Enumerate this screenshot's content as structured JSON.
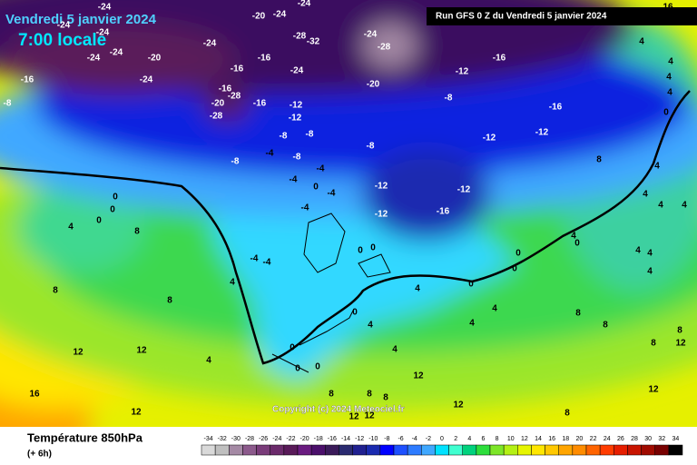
{
  "header": {
    "date": "Vendredi 5 janvier 2024",
    "time": "7:00 locale",
    "run": "Run GFS 0 Z du Vendredi 5 janvier 2024"
  },
  "copyright": "Copyright (c) 2024 Meteociel.fr",
  "footer": {
    "title": "Température 850hPa",
    "subtitle": "(+ 6h)"
  },
  "legend": {
    "scale": [
      -34,
      -32,
      -30,
      -28,
      -26,
      -24,
      -22,
      -20,
      -18,
      -16,
      -14,
      -12,
      -10,
      -8,
      -6,
      -4,
      -2,
      0,
      2,
      4,
      6,
      8,
      10,
      12,
      14,
      16,
      18,
      20,
      22,
      24,
      26,
      28,
      30,
      32,
      34
    ],
    "colors": [
      "#d9d9d9",
      "#bfbfbf",
      "#a58aa5",
      "#8c5a8c",
      "#7a3c7a",
      "#6b2a6b",
      "#591a59",
      "#6a1b80",
      "#4b0f6b",
      "#3a1a5a",
      "#2a2a70",
      "#202090",
      "#1a2ab0",
      "#0000ff",
      "#1e50ff",
      "#2d7bff",
      "#40a8ff",
      "#00e1ff",
      "#40ffd0",
      "#00d27d",
      "#2dde3c",
      "#7de628",
      "#b4f014",
      "#e6f500",
      "#ffe600",
      "#ffc800",
      "#ffa500",
      "#ff8c00",
      "#ff6400",
      "#ff3c00",
      "#e61e00",
      "#c81400",
      "#a00a00",
      "#780000",
      "#000000"
    ]
  },
  "map_labels": [
    -24,
    -20,
    -24,
    -24,
    -28,
    -32,
    -24,
    -28,
    -24,
    -24,
    -24,
    -24,
    -20,
    -24,
    -16,
    -16,
    -24,
    -20,
    -12,
    -16,
    -16,
    -24,
    -16,
    -28,
    -20,
    -28,
    -16,
    -12,
    -12,
    -8,
    -16,
    -12,
    -12,
    -8,
    -8,
    -8,
    -8,
    -4,
    -8,
    -8,
    -4,
    -4,
    0,
    -12,
    -12,
    -4,
    -4,
    -12,
    -16,
    0,
    0,
    0,
    4,
    8,
    -4,
    -4,
    0,
    0,
    0,
    0,
    0,
    4,
    0,
    4,
    4,
    4,
    8,
    8,
    4,
    0,
    4,
    4,
    4,
    4,
    8,
    8,
    4,
    0,
    0,
    0,
    4,
    12,
    12,
    16,
    12,
    8,
    8,
    8,
    12,
    12,
    12,
    12,
    8,
    8,
    16,
    4,
    4,
    4,
    4,
    0,
    4,
    4,
    4,
    4,
    8,
    8,
    12,
    12
  ]
}
